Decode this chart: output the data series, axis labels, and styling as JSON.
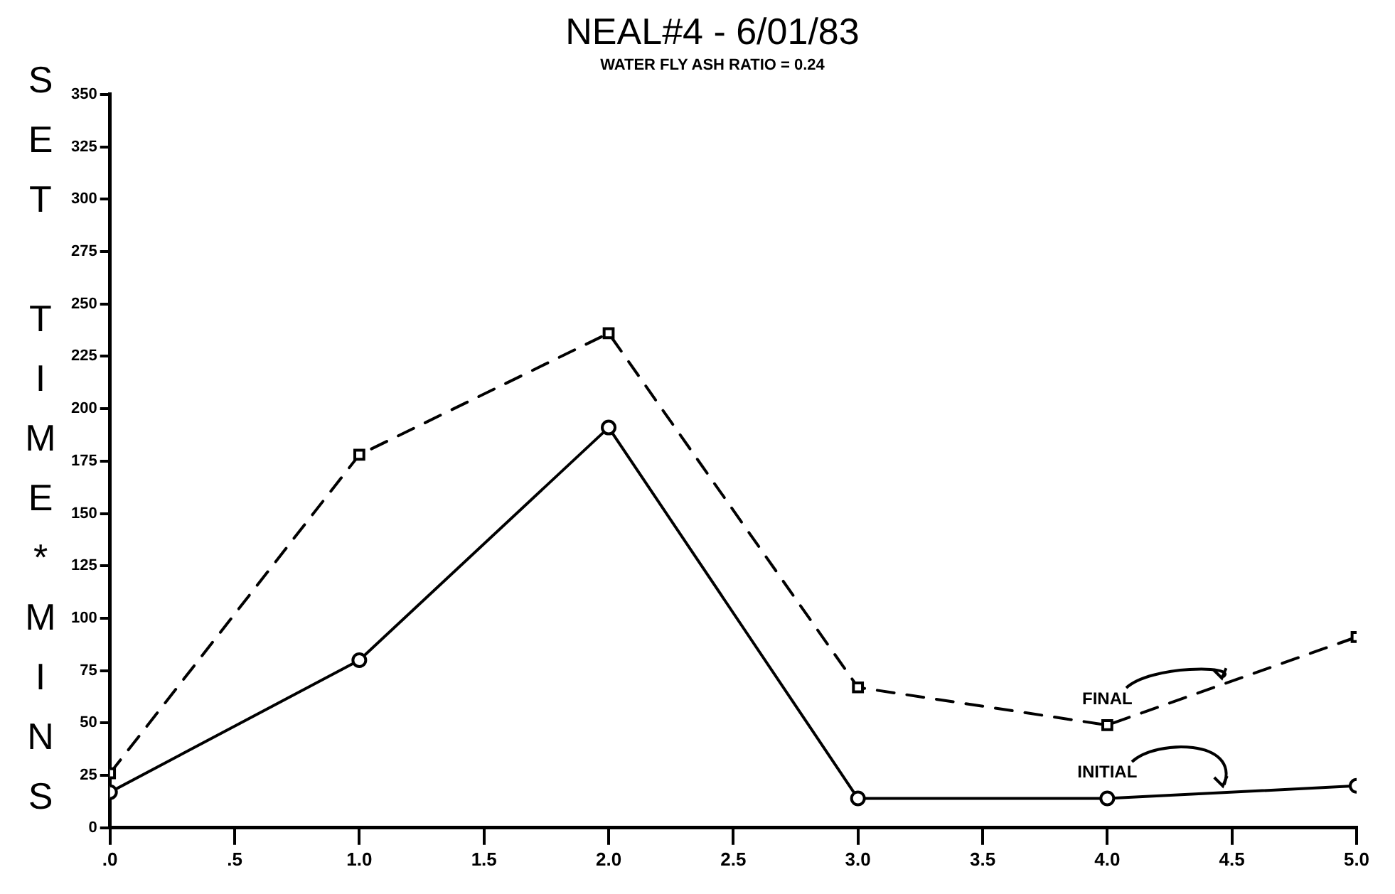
{
  "chart_data": {
    "type": "line",
    "title": "NEAL#4 - 6/01/83",
    "subtitle": "WATER FLY ASH RATIO = 0.24",
    "ylabel": "SET TIME*MINS",
    "x": [
      0,
      1,
      2,
      3,
      4,
      5
    ],
    "series": [
      {
        "name": "FINAL",
        "color": "#000000",
        "values": [
          26,
          178,
          236,
          67,
          49,
          91
        ],
        "marker": "square",
        "line_style": "dashed"
      },
      {
        "name": "INITIAL",
        "color": "#000000",
        "values": [
          17,
          80,
          191,
          14,
          14,
          20
        ],
        "marker": "circle",
        "line_style": "solid"
      }
    ],
    "xlim": [
      0,
      5
    ],
    "xticks": [
      {
        "value": 0,
        "label": ".0"
      },
      {
        "value": 0.5,
        "label": ".5"
      },
      {
        "value": 1,
        "label": "1.0"
      },
      {
        "value": 1.5,
        "label": "1.5"
      },
      {
        "value": 2,
        "label": "2.0"
      },
      {
        "value": 2.5,
        "label": "2.5"
      },
      {
        "value": 3,
        "label": "3.0"
      },
      {
        "value": 3.5,
        "label": "3.5"
      },
      {
        "value": 4,
        "label": "4.0"
      },
      {
        "value": 4.5,
        "label": "4.5"
      },
      {
        "value": 5,
        "label": "5.0"
      }
    ],
    "ylim": [
      0,
      350
    ],
    "yticks": [
      0,
      25,
      50,
      75,
      100,
      125,
      150,
      175,
      200,
      225,
      250,
      275,
      300,
      325,
      350
    ],
    "grid": false,
    "legend": false
  }
}
